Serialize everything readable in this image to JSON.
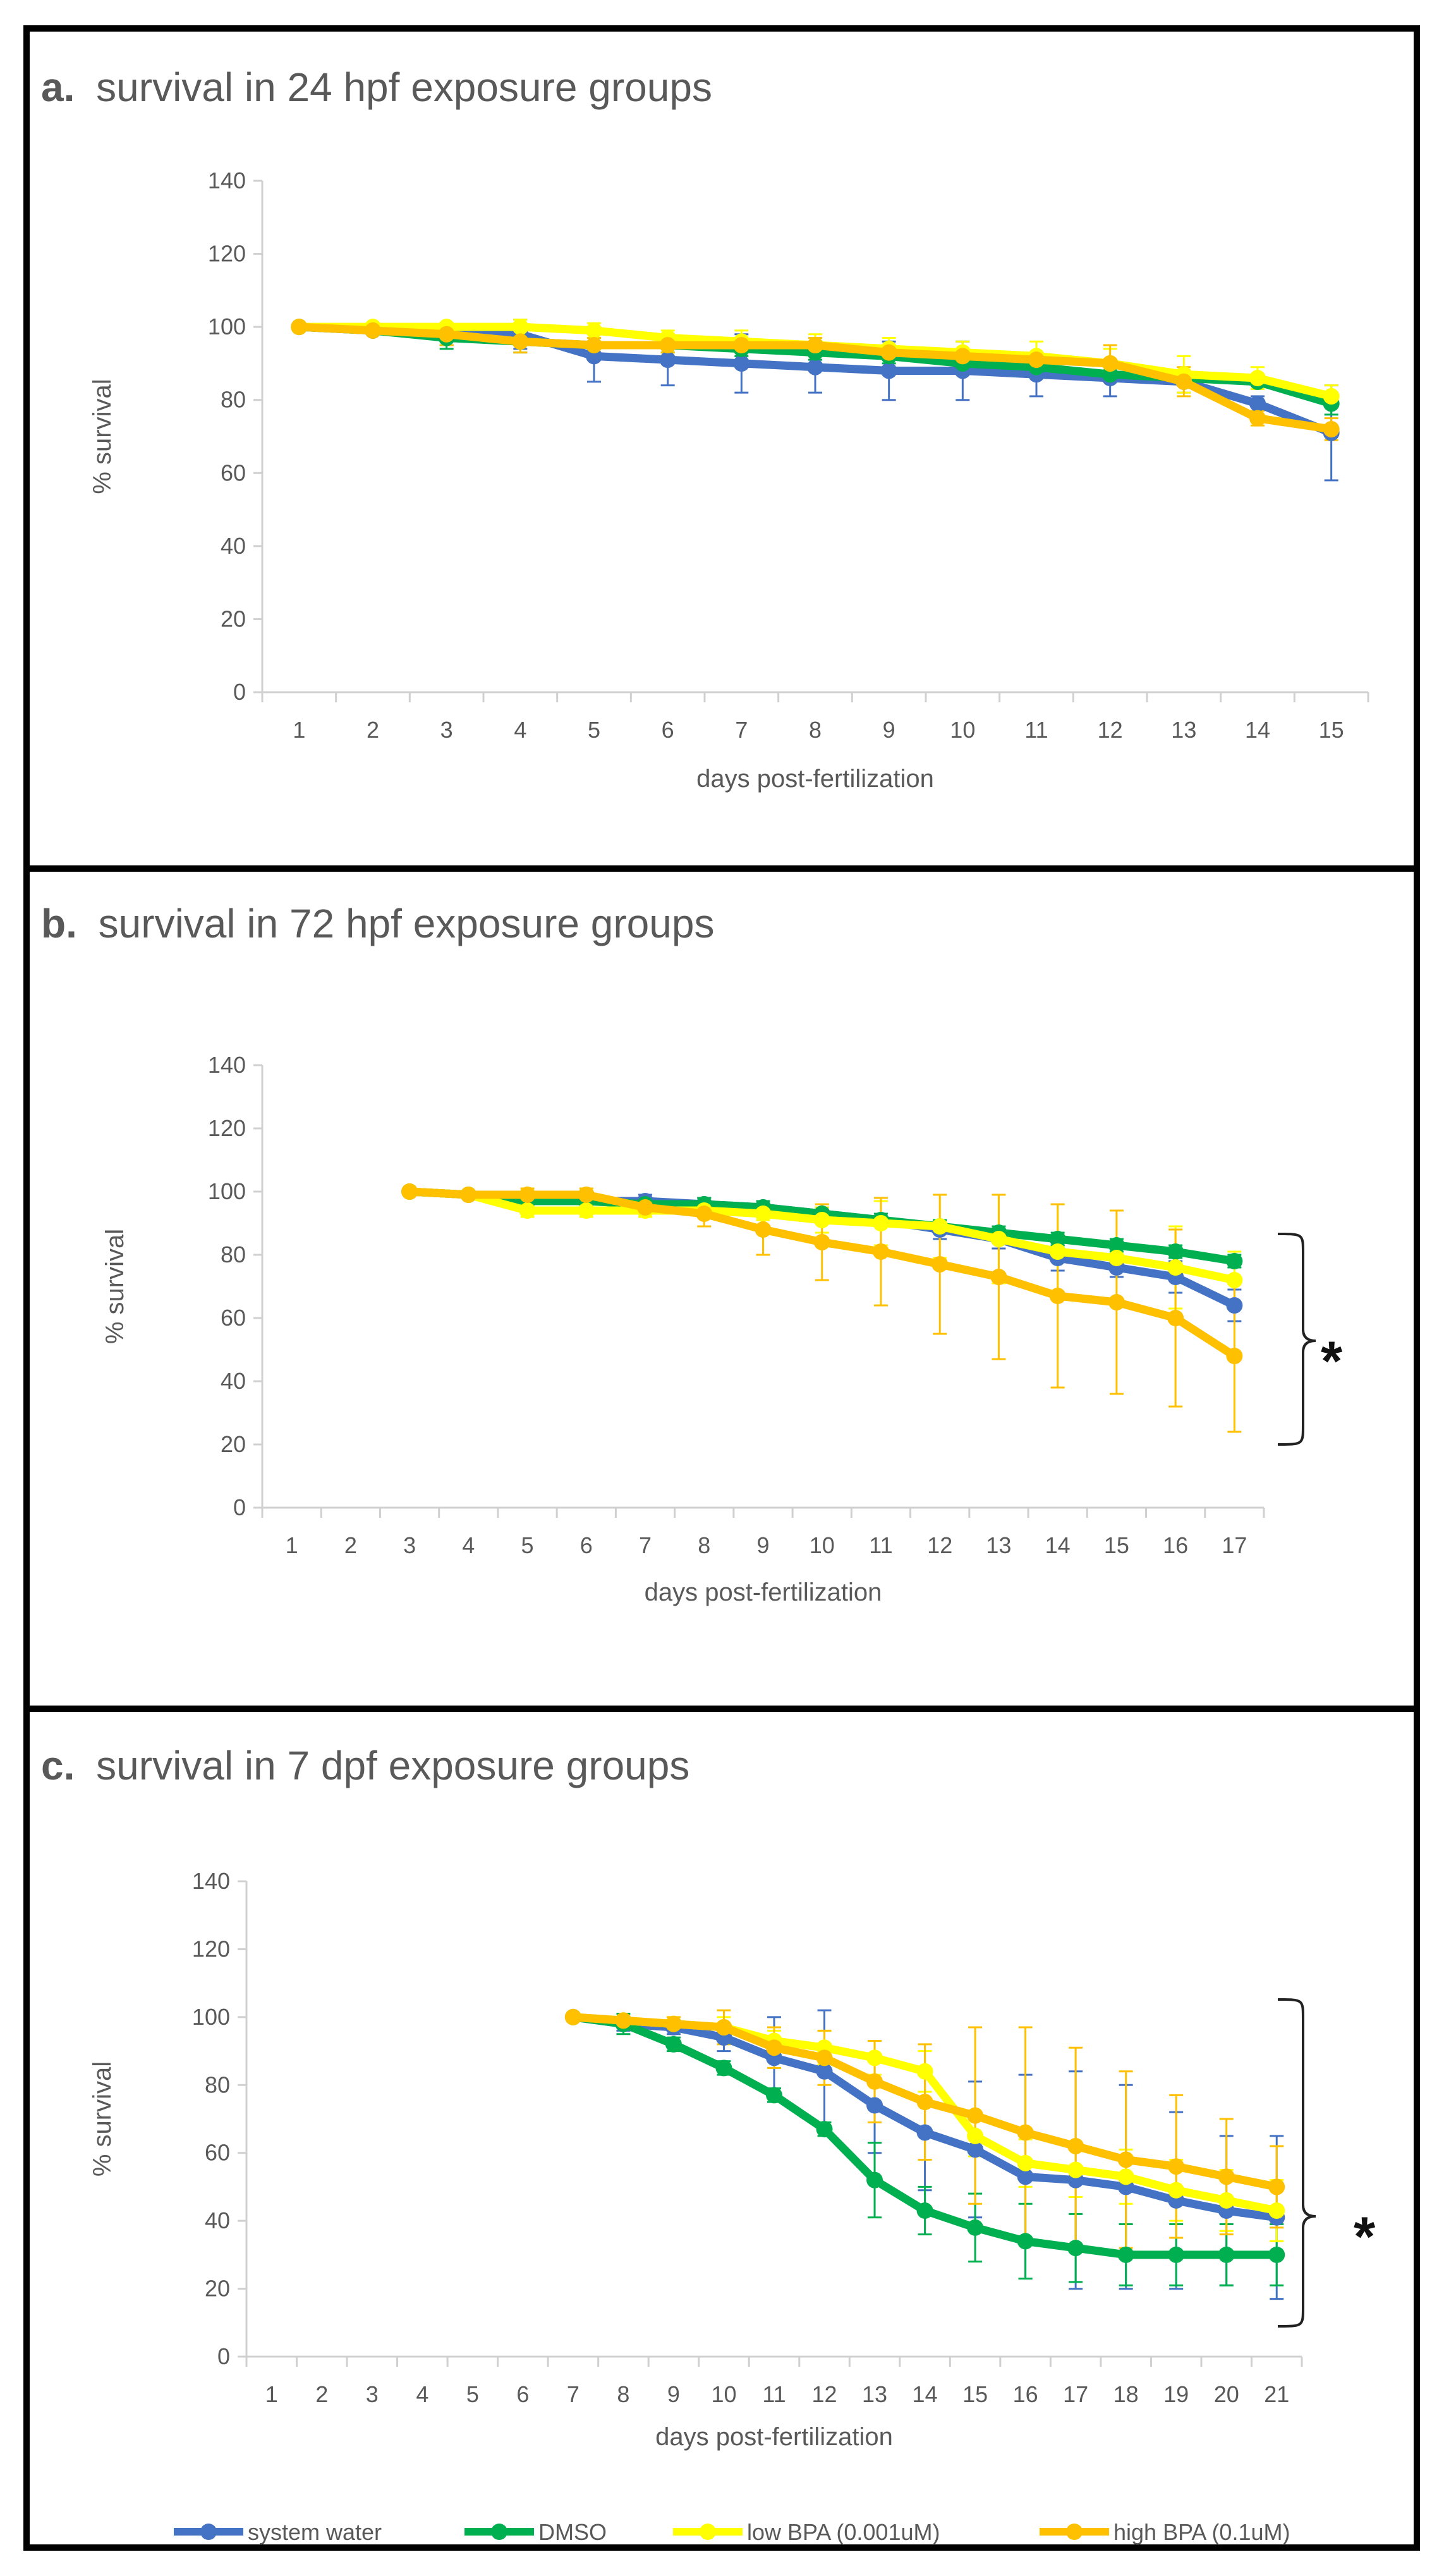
{
  "chart_data": [
    {
      "type": "line",
      "panel": "a.",
      "title": "survival in 24 hpf exposure groups",
      "xlabel": "days post-fertilization",
      "ylabel": "% survival",
      "ylim": [
        0,
        140
      ],
      "yticks": [
        0,
        20,
        40,
        60,
        80,
        100,
        120,
        140
      ],
      "categories": [
        "1",
        "2",
        "3",
        "4",
        "5",
        "6",
        "7",
        "8",
        "9",
        "10",
        "11",
        "12",
        "13",
        "14",
        "15"
      ],
      "series": [
        {
          "name": "system water",
          "color": "#4472C4",
          "x": [
            1,
            2,
            3,
            4,
            5,
            6,
            7,
            8,
            9,
            10,
            11,
            12,
            13,
            14,
            15
          ],
          "values": [
            100,
            99,
            98,
            98,
            92,
            91,
            90,
            89,
            88,
            88,
            87,
            86,
            85,
            79,
            71
          ],
          "errors": [
            0,
            1,
            3,
            4,
            7,
            7,
            8,
            7,
            8,
            8,
            6,
            5,
            3,
            2,
            13
          ]
        },
        {
          "name": "DMSO",
          "color": "#00B050",
          "x": [
            1,
            2,
            3,
            4,
            5,
            6,
            7,
            8,
            9,
            10,
            11,
            12,
            13,
            14,
            15
          ],
          "values": [
            100,
            99,
            97,
            96,
            95,
            95,
            94,
            93,
            92,
            90,
            89,
            87,
            86,
            85,
            79
          ],
          "errors": [
            0,
            1,
            3,
            3,
            2,
            2,
            2,
            2,
            2,
            2,
            2,
            2,
            2,
            2,
            3
          ]
        },
        {
          "name": "low BPA (0.001uM)",
          "color": "#FFFF00",
          "x": [
            1,
            2,
            3,
            4,
            5,
            6,
            7,
            8,
            9,
            10,
            11,
            12,
            13,
            14,
            15
          ],
          "values": [
            100,
            100,
            100,
            100,
            99,
            97,
            96,
            95,
            94,
            93,
            92,
            90,
            87,
            86,
            81
          ],
          "errors": [
            0,
            1,
            1,
            2,
            2,
            2,
            3,
            3,
            3,
            3,
            4,
            4,
            5,
            3,
            3
          ]
        },
        {
          "name": "high BPA (0.1uM)",
          "color": "#FFC000",
          "x": [
            1,
            2,
            3,
            4,
            5,
            6,
            7,
            8,
            9,
            10,
            11,
            12,
            13,
            14,
            15
          ],
          "values": [
            100,
            99,
            98,
            96,
            95,
            95,
            95,
            95,
            93,
            92,
            91,
            90,
            85,
            75,
            72
          ],
          "errors": [
            0,
            1,
            3,
            3,
            2,
            2,
            2,
            2,
            2,
            2,
            2,
            5,
            4,
            2,
            3
          ]
        }
      ]
    },
    {
      "type": "line",
      "panel": "b.",
      "title": "survival in 72 hpf exposure groups",
      "xlabel": "days post-fertilization",
      "ylabel": "% survival",
      "ylim": [
        0,
        140
      ],
      "yticks": [
        0,
        20,
        40,
        60,
        80,
        100,
        120,
        140
      ],
      "categories": [
        "1",
        "2",
        "3",
        "4",
        "5",
        "6",
        "7",
        "8",
        "9",
        "10",
        "11",
        "12",
        "13",
        "14",
        "15",
        "16",
        "17"
      ],
      "significance": "*",
      "series": [
        {
          "name": "system water",
          "color": "#4472C4",
          "x": [
            3,
            4,
            5,
            6,
            7,
            8,
            9,
            10,
            11,
            12,
            13,
            14,
            15,
            16,
            17
          ],
          "values": [
            100,
            99,
            97,
            97,
            97,
            96,
            95,
            93,
            91,
            88,
            85,
            79,
            76,
            73,
            64
          ],
          "errors": [
            0,
            1,
            2,
            2,
            2,
            2,
            2,
            2,
            2,
            3,
            3,
            4,
            3,
            5,
            5
          ]
        },
        {
          "name": "DMSO",
          "color": "#00B050",
          "x": [
            3,
            4,
            5,
            6,
            7,
            8,
            9,
            10,
            11,
            12,
            13,
            14,
            15,
            16,
            17
          ],
          "values": [
            100,
            99,
            97,
            97,
            96,
            96,
            95,
            93,
            91,
            89,
            87,
            85,
            83,
            81,
            78
          ],
          "errors": [
            0,
            1,
            1,
            2,
            2,
            2,
            2,
            2,
            2,
            2,
            2,
            2,
            2,
            2,
            2
          ]
        },
        {
          "name": "low BPA (0.001uM)",
          "color": "#FFFF00",
          "x": [
            3,
            4,
            5,
            6,
            7,
            8,
            9,
            10,
            11,
            12,
            13,
            14,
            15,
            16,
            17
          ],
          "values": [
            100,
            99,
            94,
            94,
            94,
            94,
            93,
            91,
            90,
            89,
            85,
            81,
            79,
            76,
            72
          ],
          "errors": [
            0,
            1,
            2,
            2,
            2,
            2,
            2,
            4,
            7,
            10,
            14,
            15,
            15,
            13,
            9
          ]
        },
        {
          "name": "high BPA (0.1uM)",
          "color": "#FFC000",
          "x": [
            3,
            4,
            5,
            6,
            7,
            8,
            9,
            10,
            11,
            12,
            13,
            14,
            15,
            16,
            17
          ],
          "values": [
            100,
            99,
            99,
            99,
            95,
            93,
            88,
            84,
            81,
            77,
            73,
            67,
            65,
            60,
            48
          ],
          "errors": [
            0,
            1,
            2,
            2,
            2,
            4,
            8,
            12,
            17,
            22,
            26,
            29,
            29,
            28,
            24
          ]
        }
      ]
    },
    {
      "type": "line",
      "panel": "c.",
      "title": "survival in 7 dpf exposure groups",
      "xlabel": "days post-fertilization",
      "ylabel": "% survival",
      "ylim": [
        0,
        140
      ],
      "yticks": [
        0,
        20,
        40,
        60,
        80,
        100,
        120,
        140
      ],
      "categories": [
        "1",
        "2",
        "3",
        "4",
        "5",
        "6",
        "7",
        "8",
        "9",
        "10",
        "11",
        "12",
        "13",
        "14",
        "15",
        "16",
        "17",
        "18",
        "19",
        "20",
        "21"
      ],
      "significance": "*",
      "series": [
        {
          "name": "system water",
          "color": "#4472C4",
          "x": [
            7,
            8,
            9,
            10,
            11,
            12,
            13,
            14,
            15,
            16,
            17,
            18,
            19,
            20,
            21
          ],
          "values": [
            100,
            98,
            97,
            94,
            88,
            84,
            74,
            66,
            61,
            53,
            52,
            50,
            46,
            43,
            41
          ],
          "errors": [
            0,
            2,
            2,
            4,
            12,
            18,
            14,
            17,
            20,
            30,
            32,
            30,
            26,
            22,
            24
          ]
        },
        {
          "name": "DMSO",
          "color": "#00B050",
          "x": [
            7,
            8,
            9,
            10,
            11,
            12,
            13,
            14,
            15,
            16,
            17,
            18,
            19,
            20,
            21
          ],
          "values": [
            100,
            98,
            92,
            85,
            77,
            67,
            52,
            43,
            38,
            34,
            32,
            30,
            30,
            30,
            30
          ],
          "errors": [
            0,
            3,
            2,
            2,
            2,
            2,
            11,
            7,
            10,
            11,
            10,
            9,
            9,
            9,
            9
          ]
        },
        {
          "name": "low BPA (0.001uM)",
          "color": "#FFFF00",
          "x": [
            7,
            8,
            9,
            10,
            11,
            12,
            13,
            14,
            15,
            16,
            17,
            18,
            19,
            20,
            21
          ],
          "values": [
            100,
            99,
            98,
            97,
            93,
            91,
            88,
            84,
            65,
            57,
            55,
            53,
            49,
            46,
            43
          ],
          "errors": [
            0,
            1,
            2,
            3,
            3,
            5,
            5,
            6,
            6,
            7,
            8,
            8,
            9,
            9,
            9
          ]
        },
        {
          "name": "high BPA (0.1uM)",
          "color": "#FFC000",
          "x": [
            7,
            8,
            9,
            10,
            11,
            12,
            13,
            14,
            15,
            16,
            17,
            18,
            19,
            20,
            21
          ],
          "values": [
            100,
            99,
            98,
            97,
            91,
            88,
            81,
            75,
            71,
            66,
            62,
            58,
            56,
            53,
            50
          ],
          "errors": [
            0,
            1,
            2,
            5,
            6,
            8,
            12,
            17,
            26,
            31,
            29,
            26,
            21,
            17,
            12
          ]
        }
      ]
    }
  ],
  "legend": [
    {
      "label": "system water",
      "color": "#4472C4"
    },
    {
      "label": "DMSO",
      "color": "#00B050"
    },
    {
      "label": "low BPA (0.001uM)",
      "color": "#FFFF00"
    },
    {
      "label": "high BPA (0.1uM)",
      "color": "#FFC000"
    }
  ]
}
